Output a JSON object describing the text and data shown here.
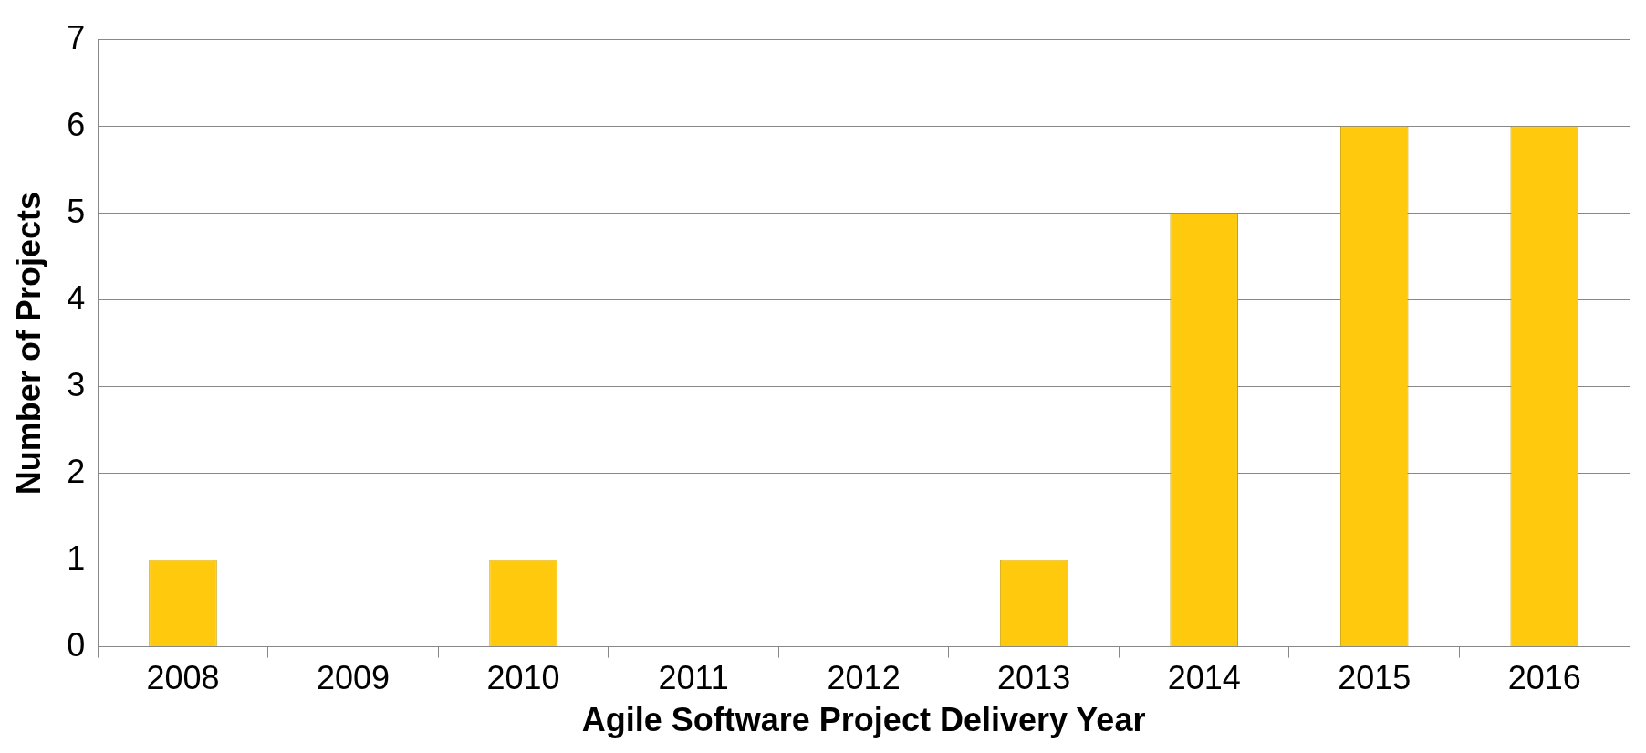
{
  "chart_data": {
    "type": "bar",
    "xlabel": "Agile Software Project Delivery Year",
    "ylabel": "Number of Projects",
    "categories": [
      "2008",
      "2009",
      "2010",
      "2011",
      "2012",
      "2013",
      "2014",
      "2015",
      "2016"
    ],
    "values": [
      1,
      0,
      1,
      0,
      0,
      1,
      5,
      6,
      6
    ],
    "color": "#ffc90e",
    "ylim": [
      0,
      7
    ],
    "yticks": [
      0,
      1,
      2,
      3,
      4,
      5,
      6,
      7
    ],
    "grid": "y",
    "legend": false
  }
}
